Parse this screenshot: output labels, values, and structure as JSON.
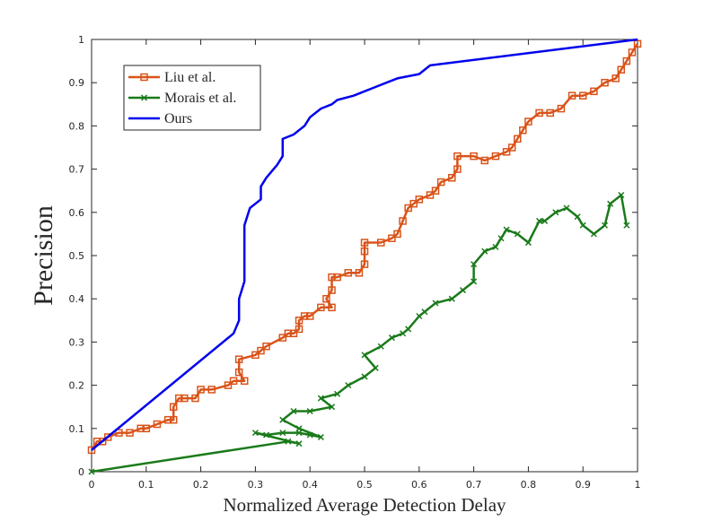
{
  "chart_data": {
    "type": "line",
    "xlabel": "Normalized Average Detection Delay",
    "ylabel": "Precision",
    "xlim": [
      0,
      1
    ],
    "ylim": [
      0,
      1
    ],
    "xticks": [
      "0",
      "0.1",
      "0.2",
      "0.3",
      "0.4",
      "0.5",
      "0.6",
      "0.7",
      "0.8",
      "0.9",
      "1"
    ],
    "yticks": [
      "0",
      "0.1",
      "0.2",
      "0.3",
      "0.4",
      "0.5",
      "0.6",
      "0.7",
      "0.8",
      "0.9",
      "1"
    ],
    "legend_position": "top-left",
    "grid": false,
    "series": [
      {
        "name": "Liu et al.",
        "color": "#d95319",
        "marker": "square",
        "points": [
          [
            0.0,
            0.05
          ],
          [
            0.01,
            0.07
          ],
          [
            0.02,
            0.07
          ],
          [
            0.03,
            0.08
          ],
          [
            0.05,
            0.09
          ],
          [
            0.07,
            0.09
          ],
          [
            0.09,
            0.1
          ],
          [
            0.1,
            0.1
          ],
          [
            0.12,
            0.11
          ],
          [
            0.14,
            0.12
          ],
          [
            0.15,
            0.12
          ],
          [
            0.15,
            0.15
          ],
          [
            0.16,
            0.17
          ],
          [
            0.17,
            0.17
          ],
          [
            0.19,
            0.17
          ],
          [
            0.2,
            0.19
          ],
          [
            0.22,
            0.19
          ],
          [
            0.25,
            0.2
          ],
          [
            0.26,
            0.21
          ],
          [
            0.28,
            0.21
          ],
          [
            0.27,
            0.23
          ],
          [
            0.27,
            0.26
          ],
          [
            0.3,
            0.27
          ],
          [
            0.31,
            0.28
          ],
          [
            0.32,
            0.29
          ],
          [
            0.35,
            0.31
          ],
          [
            0.36,
            0.32
          ],
          [
            0.37,
            0.32
          ],
          [
            0.38,
            0.33
          ],
          [
            0.38,
            0.35
          ],
          [
            0.39,
            0.36
          ],
          [
            0.4,
            0.36
          ],
          [
            0.42,
            0.38
          ],
          [
            0.44,
            0.38
          ],
          [
            0.43,
            0.4
          ],
          [
            0.44,
            0.42
          ],
          [
            0.44,
            0.45
          ],
          [
            0.45,
            0.45
          ],
          [
            0.47,
            0.46
          ],
          [
            0.49,
            0.46
          ],
          [
            0.5,
            0.48
          ],
          [
            0.5,
            0.51
          ],
          [
            0.5,
            0.53
          ],
          [
            0.53,
            0.53
          ],
          [
            0.55,
            0.54
          ],
          [
            0.56,
            0.55
          ],
          [
            0.57,
            0.58
          ],
          [
            0.58,
            0.61
          ],
          [
            0.59,
            0.62
          ],
          [
            0.6,
            0.63
          ],
          [
            0.62,
            0.64
          ],
          [
            0.63,
            0.65
          ],
          [
            0.64,
            0.67
          ],
          [
            0.66,
            0.68
          ],
          [
            0.67,
            0.7
          ],
          [
            0.67,
            0.73
          ],
          [
            0.7,
            0.73
          ],
          [
            0.72,
            0.72
          ],
          [
            0.74,
            0.73
          ],
          [
            0.76,
            0.74
          ],
          [
            0.77,
            0.75
          ],
          [
            0.78,
            0.77
          ],
          [
            0.79,
            0.79
          ],
          [
            0.8,
            0.81
          ],
          [
            0.82,
            0.83
          ],
          [
            0.84,
            0.83
          ],
          [
            0.86,
            0.84
          ],
          [
            0.88,
            0.87
          ],
          [
            0.9,
            0.87
          ],
          [
            0.92,
            0.88
          ],
          [
            0.94,
            0.9
          ],
          [
            0.96,
            0.91
          ],
          [
            0.97,
            0.93
          ],
          [
            0.98,
            0.95
          ],
          [
            0.99,
            0.97
          ],
          [
            1.0,
            0.99
          ]
        ]
      },
      {
        "name": "Morais et al.",
        "color": "#1a7a1a",
        "marker": "x",
        "points": [
          [
            0.0,
            0.0
          ],
          [
            0.36,
            0.07
          ],
          [
            0.38,
            0.065
          ],
          [
            0.3,
            0.09
          ],
          [
            0.32,
            0.085
          ],
          [
            0.35,
            0.09
          ],
          [
            0.38,
            0.09
          ],
          [
            0.4,
            0.085
          ],
          [
            0.42,
            0.08
          ],
          [
            0.38,
            0.1
          ],
          [
            0.35,
            0.12
          ],
          [
            0.37,
            0.14
          ],
          [
            0.4,
            0.14
          ],
          [
            0.44,
            0.15
          ],
          [
            0.42,
            0.17
          ],
          [
            0.45,
            0.18
          ],
          [
            0.47,
            0.2
          ],
          [
            0.5,
            0.22
          ],
          [
            0.52,
            0.24
          ],
          [
            0.5,
            0.27
          ],
          [
            0.53,
            0.29
          ],
          [
            0.55,
            0.31
          ],
          [
            0.57,
            0.32
          ],
          [
            0.58,
            0.33
          ],
          [
            0.6,
            0.36
          ],
          [
            0.61,
            0.37
          ],
          [
            0.63,
            0.39
          ],
          [
            0.66,
            0.4
          ],
          [
            0.68,
            0.42
          ],
          [
            0.7,
            0.44
          ],
          [
            0.7,
            0.48
          ],
          [
            0.72,
            0.51
          ],
          [
            0.74,
            0.52
          ],
          [
            0.75,
            0.54
          ],
          [
            0.76,
            0.56
          ],
          [
            0.78,
            0.55
          ],
          [
            0.8,
            0.53
          ],
          [
            0.82,
            0.58
          ],
          [
            0.83,
            0.58
          ],
          [
            0.85,
            0.6
          ],
          [
            0.87,
            0.61
          ],
          [
            0.89,
            0.59
          ],
          [
            0.9,
            0.57
          ],
          [
            0.92,
            0.55
          ],
          [
            0.94,
            0.57
          ],
          [
            0.95,
            0.62
          ],
          [
            0.97,
            0.64
          ],
          [
            0.98,
            0.57
          ]
        ]
      },
      {
        "name": "Ours",
        "color": "#0000ee",
        "marker": "none",
        "points": [
          [
            0.0,
            0.05
          ],
          [
            0.26,
            0.32
          ],
          [
            0.27,
            0.35
          ],
          [
            0.27,
            0.4
          ],
          [
            0.28,
            0.44
          ],
          [
            0.28,
            0.48
          ],
          [
            0.28,
            0.52
          ],
          [
            0.28,
            0.57
          ],
          [
            0.29,
            0.61
          ],
          [
            0.31,
            0.63
          ],
          [
            0.31,
            0.66
          ],
          [
            0.32,
            0.68
          ],
          [
            0.34,
            0.71
          ],
          [
            0.35,
            0.73
          ],
          [
            0.35,
            0.77
          ],
          [
            0.37,
            0.78
          ],
          [
            0.38,
            0.79
          ],
          [
            0.39,
            0.8
          ],
          [
            0.4,
            0.82
          ],
          [
            0.42,
            0.84
          ],
          [
            0.44,
            0.85
          ],
          [
            0.45,
            0.86
          ],
          [
            0.48,
            0.87
          ],
          [
            0.5,
            0.88
          ],
          [
            0.52,
            0.89
          ],
          [
            0.54,
            0.9
          ],
          [
            0.56,
            0.91
          ],
          [
            0.6,
            0.92
          ],
          [
            0.62,
            0.94
          ],
          [
            1.0,
            1.0
          ]
        ]
      }
    ]
  }
}
